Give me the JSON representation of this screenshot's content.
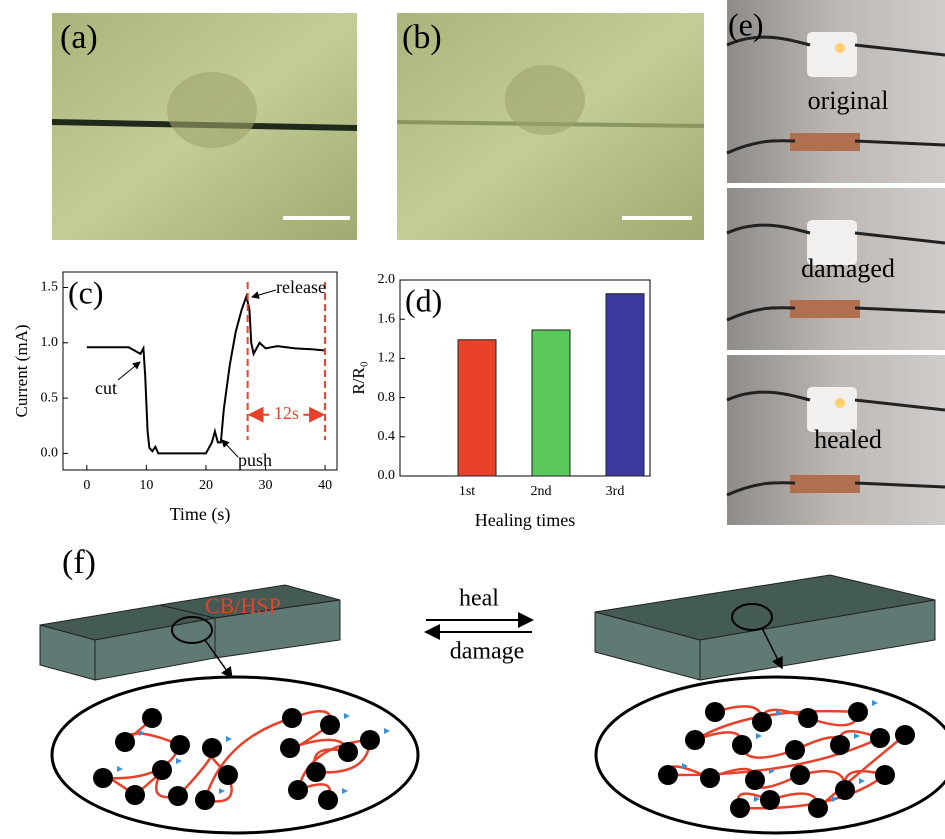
{
  "panels": {
    "a": "(a)",
    "b": "(b)",
    "e": {
      "label": "(e)",
      "states": [
        "original",
        "damaged",
        "healed"
      ]
    },
    "f": {
      "label": "(f)",
      "material": "CB/HSP",
      "forward": "heal",
      "reverse": "damage"
    }
  },
  "chart_data": [
    {
      "type": "line",
      "label": "(c)",
      "xlabel": "Time (s)",
      "ylabel": "Current (mA)",
      "x": [
        0,
        7,
        8,
        9,
        9.5,
        9.8,
        10.2,
        10.5,
        11,
        11.5,
        12,
        20,
        21,
        21.5,
        22,
        22.5,
        23,
        24,
        25,
        26,
        26.8,
        27.3,
        27.6,
        28,
        29,
        30,
        32,
        35,
        38,
        40
      ],
      "series": [
        {
          "color": "#000000",
          "values": [
            0.96,
            0.96,
            0.93,
            0.9,
            0.95,
            0.7,
            0.2,
            0.05,
            0.02,
            0.06,
            0,
            0,
            0.1,
            0.2,
            0.1,
            0.1,
            0.4,
            0.8,
            1.1,
            1.3,
            1.42,
            1.3,
            1.0,
            0.9,
            1.0,
            0.95,
            0.97,
            0.95,
            0.94,
            0.93
          ]
        }
      ],
      "vlines": [
        27,
        40
      ],
      "vline_color": "#e8412a",
      "annotations": [
        "cut",
        "push",
        "release",
        "12s"
      ],
      "xlim": [
        -4,
        42
      ],
      "ylim": [
        -0.15,
        1.64
      ],
      "xticks": [
        0,
        10,
        20,
        30,
        40
      ],
      "yticks": [
        {
          "value": 0,
          "label": "0.0"
        },
        {
          "value": 0.5,
          "label": "0.5"
        },
        {
          "value": 1,
          "label": "1.0"
        },
        {
          "value": 1.5,
          "label": "1.5"
        }
      ]
    },
    {
      "type": "bar",
      "label": "(d)",
      "xlabel": "Healing times",
      "ylabel": "R/R₀",
      "categories": [
        "1st",
        "2nd",
        "3rd"
      ],
      "values": [
        1.39,
        1.49,
        1.86
      ],
      "colors": [
        "#e8412a",
        "#5ac85a",
        "#3a3a9e"
      ],
      "ylim": [
        0,
        2
      ],
      "yticks": [
        {
          "value": 0,
          "label": "0.0"
        },
        {
          "value": 0.4,
          "label": "0.4"
        },
        {
          "value": 0.8,
          "label": "0.8"
        },
        {
          "value": 1.2,
          "label": "1.2"
        },
        {
          "value": 1.6,
          "label": "1.6"
        },
        {
          "value": 2,
          "label": "2.0"
        }
      ]
    }
  ]
}
